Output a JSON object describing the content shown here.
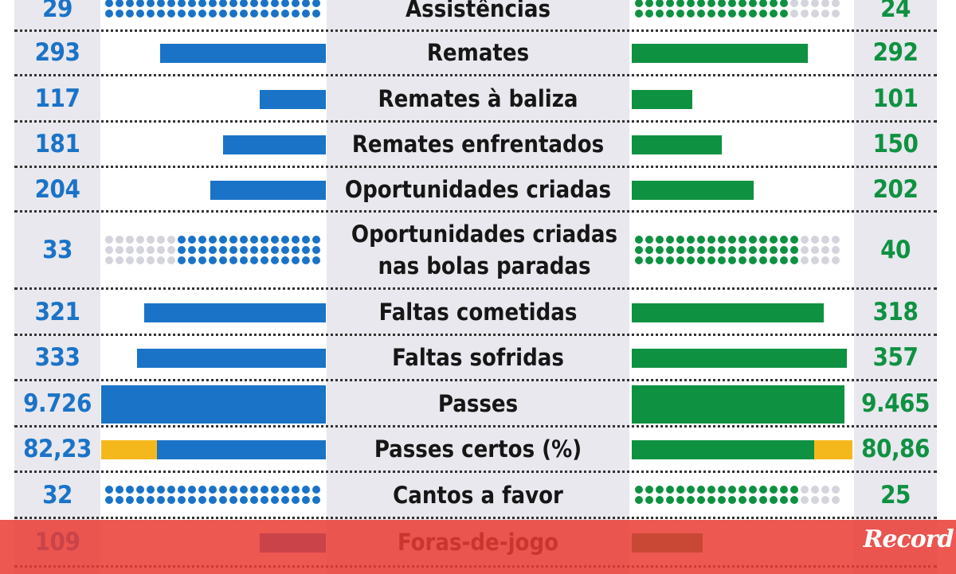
{
  "chart_data": {
    "type": "bar",
    "colors": {
      "left": "#1a73c7",
      "right": "#0f9142",
      "accent": "#f5b81c",
      "dot_inactive": "#d4d4dc",
      "overlay": "#ea3b33"
    },
    "rows": [
      {
        "label": "Assistências",
        "left": 29,
        "right": 24,
        "left_text": "29",
        "right_text": "24",
        "style": "dots"
      },
      {
        "label": "Remates",
        "left": 293,
        "right": 292,
        "left_text": "293",
        "right_text": "292",
        "style": "bar"
      },
      {
        "label": "Remates à baliza",
        "left": 117,
        "right": 101,
        "left_text": "117",
        "right_text": "101",
        "style": "bar"
      },
      {
        "label": "Remates enfrentados",
        "left": 181,
        "right": 150,
        "left_text": "181",
        "right_text": "150",
        "style": "bar"
      },
      {
        "label": "Oportunidades criadas",
        "left": 204,
        "right": 202,
        "left_text": "204",
        "right_text": "202",
        "style": "bar"
      },
      {
        "label": "Oportunidades criadas nas bolas paradas",
        "left": 33,
        "right": 40,
        "left_text": "33",
        "right_text": "40",
        "style": "dots"
      },
      {
        "label": "Faltas cometidas",
        "left": 321,
        "right": 318,
        "left_text": "321",
        "right_text": "318",
        "style": "bar"
      },
      {
        "label": "Faltas sofridas",
        "left": 333,
        "right": 357,
        "left_text": "333",
        "right_text": "357",
        "style": "bar"
      },
      {
        "label": "Passes",
        "left": 9726,
        "right": 9465,
        "left_text": "9.726",
        "right_text": "9.465",
        "style": "bar"
      },
      {
        "label": "Passes certos (%)",
        "left": 82.23,
        "right": 80.86,
        "left_text": "82,23",
        "right_text": "80,86",
        "style": "percent"
      },
      {
        "label": "Cantos a favor",
        "left": 32,
        "right": 25,
        "left_text": "32",
        "right_text": "25",
        "style": "dots"
      },
      {
        "label": "Foras-de-jogo",
        "left": 109,
        "right": null,
        "left_text": "109",
        "right_text": "",
        "style": "bar"
      }
    ]
  },
  "brand": {
    "logo_text": "Record"
  }
}
